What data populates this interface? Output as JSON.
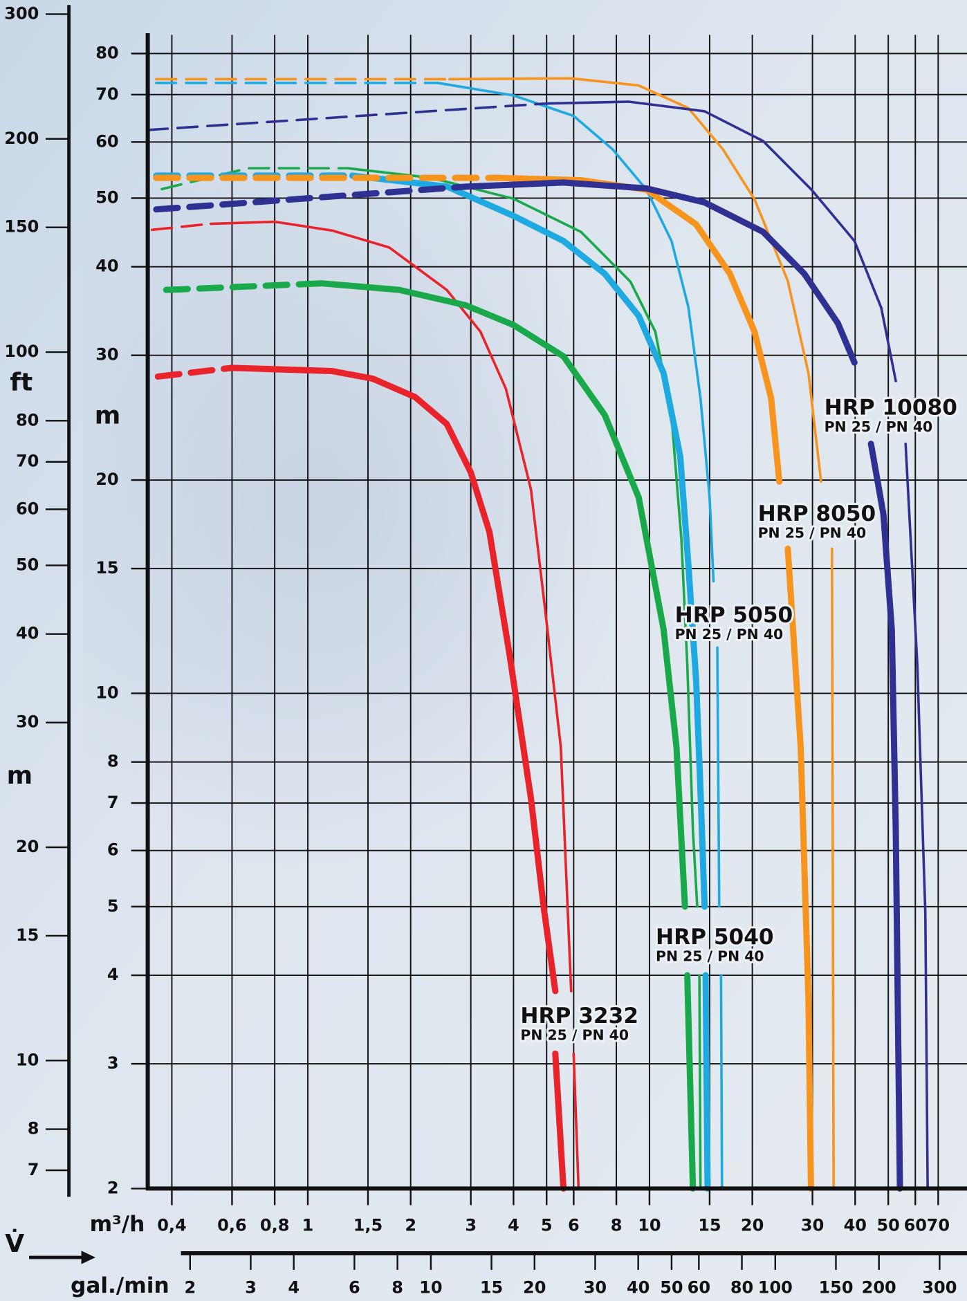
{
  "chart_data": {
    "type": "line",
    "xscale": "log",
    "yscale": "log",
    "grid": true,
    "flow_symbol": "V̇",
    "xlabel": "m³/h",
    "x2label": "gal./min",
    "ylabel": "m",
    "y2label": "ft",
    "y2sublabel": "m",
    "xlim": [
      0.34,
      85
    ],
    "xticks": [
      {
        "value": 0.4,
        "label": "0,4"
      },
      {
        "value": 0.6,
        "label": "0,6"
      },
      {
        "value": 0.8,
        "label": "0,8"
      },
      1,
      {
        "value": 1.5,
        "label": "1,5"
      },
      2,
      3,
      4,
      5,
      6,
      8,
      10,
      15,
      20,
      30,
      40,
      50,
      60,
      70
    ],
    "x2lim": [
      2,
      300
    ],
    "x2ticks": [
      2,
      3,
      4,
      6,
      8,
      10,
      15,
      20,
      30,
      40,
      50,
      60,
      80,
      100,
      150,
      200,
      300
    ],
    "ylim": [
      2,
      85
    ],
    "yticks": [
      2,
      3,
      4,
      5,
      6,
      7,
      8,
      10,
      15,
      20,
      30,
      40,
      50,
      60,
      70,
      80
    ],
    "y2lim": [
      7,
      300
    ],
    "y2ticks": [
      7,
      8,
      10,
      15,
      20,
      30,
      40,
      50,
      60,
      70,
      80,
      100,
      150,
      200,
      300
    ],
    "series": [
      {
        "color": "#e8232a",
        "weight": "thick",
        "style": "dashed",
        "x": [
          0.364,
          0.6
        ],
        "y": [
          28.0,
          28.8
        ]
      },
      {
        "color": "#e8232a",
        "weight": "thick",
        "style": "solid",
        "x": [
          0.6,
          1.18,
          1.55,
          2.06,
          2.55,
          3.0,
          3.4,
          3.9,
          4.5,
          4.9,
          5.3,
          null,
          5.3,
          5.6
        ],
        "y": [
          28.8,
          28.5,
          27.8,
          26.2,
          24.0,
          20.5,
          16.9,
          11.3,
          7.1,
          5.0,
          3.8,
          null,
          3.1,
          2.0
        ]
      },
      {
        "color": "#e8232a",
        "weight": "thin",
        "style": "dashed",
        "x": [
          0.35,
          0.52
        ],
        "y": [
          45.1,
          46.0
        ]
      },
      {
        "color": "#e8232a",
        "weight": "thin",
        "style": "solid",
        "x": [
          0.52,
          0.8,
          1.18,
          1.73,
          2.55,
          3.2,
          3.8,
          4.5,
          5.0,
          5.5,
          5.9,
          null,
          6.0,
          6.2
        ],
        "y": [
          46.0,
          46.3,
          45.0,
          42.6,
          37.1,
          32.4,
          26.9,
          19.4,
          12.6,
          8.4,
          3.8,
          null,
          3.1,
          2.0
        ]
      },
      {
        "color": "#19a94b",
        "weight": "thick",
        "style": "dashed",
        "x": [
          0.385,
          1.1
        ],
        "y": [
          37.1,
          37.9
        ]
      },
      {
        "color": "#19a94b",
        "weight": "thick",
        "style": "solid",
        "x": [
          1.1,
          1.85,
          2.9,
          4.0,
          5.6,
          7.4,
          9.3,
          11.0,
          12.0,
          12.7,
          null,
          12.9,
          13.4
        ],
        "y": [
          37.9,
          37.1,
          35.3,
          33.1,
          29.9,
          24.7,
          18.9,
          12.3,
          8.4,
          5.0,
          null,
          4.0,
          2.0
        ]
      },
      {
        "color": "#19a94b",
        "weight": "thin",
        "style": "dashed",
        "x": [
          0.374,
          0.67,
          1.31
        ],
        "y": [
          51.5,
          55.1,
          55.1
        ]
      },
      {
        "color": "#19a94b",
        "weight": "thin",
        "style": "solid",
        "x": [
          1.31,
          2.3,
          4.0,
          6.3,
          8.8,
          10.4,
          11.6,
          12.4,
          12.9,
          13.4,
          13.8,
          null,
          14.0,
          14.1
        ],
        "y": [
          55.1,
          53.4,
          49.9,
          44.8,
          38.1,
          32.4,
          24.6,
          16.5,
          11.0,
          6.4,
          5.0,
          null,
          4.0,
          2.0
        ]
      },
      {
        "color": "#1fa9e1",
        "weight": "thick",
        "style": "dashed",
        "x": [
          0.36,
          1.35
        ],
        "y": [
          53.8,
          53.8
        ]
      },
      {
        "color": "#1fa9e1",
        "weight": "thick",
        "style": "solid",
        "x": [
          1.35,
          2.56,
          4.0,
          5.6,
          7.4,
          9.3,
          11.0,
          12.3,
          13.0,
          13.7,
          14.1,
          14.5,
          null,
          14.6,
          14.8
        ],
        "y": [
          53.8,
          51.9,
          47.2,
          43.5,
          39.1,
          34.1,
          28.3,
          21.6,
          15.2,
          10.4,
          7.3,
          5.0,
          null,
          4.0,
          2.0
        ]
      },
      {
        "color": "#1fa9e1",
        "weight": "thin",
        "style": "dashed",
        "x": [
          0.36,
          2.4
        ],
        "y": [
          72.7,
          72.7
        ]
      },
      {
        "color": "#1fa9e1",
        "weight": "thin",
        "style": "solid",
        "x": [
          2.4,
          4.0,
          6.0,
          7.8,
          9.8,
          11.6,
          13.0,
          14.1,
          15.0,
          15.4,
          null,
          15.8,
          16.0,
          null,
          16.2,
          16.3
        ],
        "y": [
          72.7,
          69.8,
          65.3,
          58.6,
          51.4,
          43.5,
          35.1,
          26.1,
          18.9,
          14.4,
          null,
          11.6,
          5.0,
          null,
          4.0,
          2.0
        ]
      },
      {
        "color": "#f7941d",
        "weight": "thick",
        "style": "dashed",
        "x": [
          0.36,
          3.6
        ],
        "y": [
          53.4,
          53.4
        ]
      },
      {
        "color": "#f7941d",
        "weight": "thick",
        "style": "solid",
        "x": [
          3.6,
          6.3,
          9.8,
          13.7,
          17.2,
          20.3,
          22.7,
          24.0,
          null,
          25.4,
          27.7,
          29.2,
          29.7
        ],
        "y": [
          53.4,
          53.0,
          51.4,
          45.9,
          39.1,
          32.4,
          26.1,
          19.9,
          null,
          16.0,
          8.4,
          3.7,
          2.0
        ]
      },
      {
        "color": "#f7941d",
        "weight": "thin",
        "style": "dashed",
        "x": [
          0.36,
          2.6
        ],
        "y": [
          73.6,
          73.6
        ]
      },
      {
        "color": "#f7941d",
        "weight": "thin",
        "style": "solid",
        "x": [
          2.6,
          5.9,
          9.3,
          13.0,
          16.4,
          20.3,
          25.4,
          29.2,
          31.8,
          null,
          34.2,
          34.6
        ],
        "y": [
          73.6,
          73.8,
          72.1,
          67.0,
          58.6,
          49.8,
          38.2,
          28.3,
          19.9,
          null,
          16.0,
          2.0
        ]
      },
      {
        "color": "#2e3192",
        "weight": "thick",
        "style": "dashed",
        "x": [
          0.36,
          2.9
        ],
        "y": [
          48.2,
          51.9
        ]
      },
      {
        "color": "#2e3192",
        "weight": "thick",
        "style": "solid",
        "x": [
          2.9,
          5.6,
          9.8,
          14.5,
          21.5,
          28.4,
          35.6,
          39.8,
          null,
          44.5,
          48.4,
          51.2,
          52.6,
          54.1
        ],
        "y": [
          51.9,
          52.6,
          51.6,
          49.3,
          44.8,
          39.1,
          33.3,
          29.3,
          null,
          22.5,
          17.9,
          12.3,
          6.4,
          2.0
        ]
      },
      {
        "color": "#2e3192",
        "weight": "thin",
        "style": "dashed",
        "x": [
          0.34,
          5.0
        ],
        "y": [
          62.4,
          68.0
        ]
      },
      {
        "color": "#2e3192",
        "weight": "thin",
        "style": "solid",
        "x": [
          5.0,
          8.7,
          14.5,
          21.5,
          29.8,
          39.8,
          47.7,
          52.6,
          null,
          56.2,
          60.8,
          64.2,
          65.2
        ],
        "y": [
          68.0,
          68.4,
          66.3,
          60.2,
          51.4,
          43.5,
          35.0,
          27.6,
          null,
          22.5,
          11.0,
          4.9,
          2.0
        ]
      }
    ],
    "annotations": [
      {
        "text": "HRP 3232",
        "subtext": "PN 25 / PN 40",
        "color": "#e8232a"
      },
      {
        "text": "HRP 5040",
        "subtext": "PN 25 / PN 40",
        "color": "#19a94b"
      },
      {
        "text": "HRP 5050",
        "subtext": "PN 25 / PN 40",
        "color": "#1fa9e1"
      },
      {
        "text": "HRP 8050",
        "subtext": "PN 25 / PN 40",
        "color": "#f7941d"
      },
      {
        "text": "HRP 10080",
        "subtext": "PN 25 / PN 40",
        "color": "#2e3192"
      }
    ]
  }
}
